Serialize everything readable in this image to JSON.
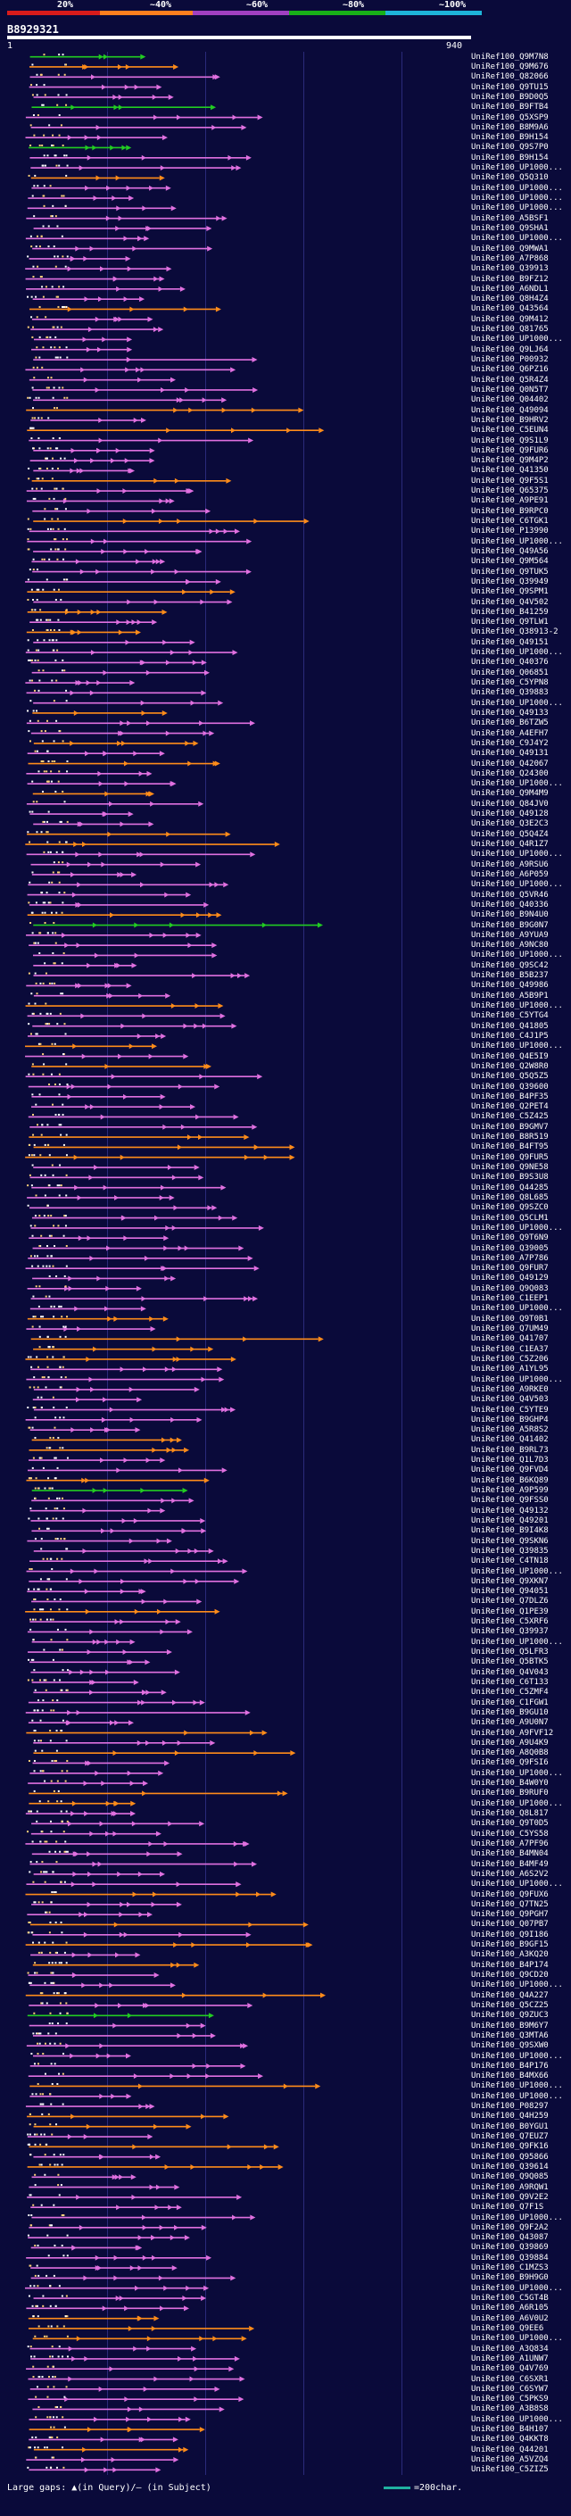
{
  "legend": {
    "pcts": [
      "20%",
      "~40%",
      "~60%",
      "~80%",
      "~100%"
    ],
    "colors": [
      "#d81b1b",
      "#ff7f1e",
      "#a040c0",
      "#18b018",
      "#1eb4d8"
    ]
  },
  "query": {
    "id": "B8929321",
    "start": "1",
    "end": "940"
  },
  "footer": {
    "gaps_text": "Large gaps: ▲(in Query)/– (in Subject)",
    "scale_text": "=200char."
  },
  "hits": [
    "UniRef100_Q9M7N8",
    "UniRef100_Q9M676",
    "UniRef100_Q82066",
    "UniRef100_Q9TU15",
    "UniRef100_B9D0Q5",
    "UniRef100_B9FTB4",
    "UniRef100_Q5XSP9",
    "UniRef100_B8M9A6",
    "UniRef100_B9H154",
    "UniRef100_Q9S7P0",
    "UniRef100_B9H154",
    "UniRef100_UP1000...",
    "UniRef100_Q5Q310",
    "UniRef100_UP1000...",
    "UniRef100_UP1000...",
    "UniRef100_UP1000...",
    "UniRef100_A5BSF1",
    "UniRef100_Q9SHA1",
    "UniRef100_UP1000...",
    "UniRef100_Q9MWA1",
    "UniRef100_A7P868",
    "UniRef100_Q39913",
    "UniRef100_B9FZ12",
    "UniRef100_A6NDL1",
    "UniRef100_Q8H4Z4",
    "UniRef100_Q43564",
    "UniRef100_Q9M412",
    "UniRef100_Q81765",
    "UniRef100_UP1000...",
    "UniRef100_Q9LJ64",
    "UniRef100_P00932",
    "UniRef100_Q6PZ16",
    "UniRef100_Q5R4Z4",
    "UniRef100_Q0N5T7",
    "UniRef100_Q04402",
    "UniRef100_Q49094",
    "UniRef100_B9HRV2",
    "UniRef100_C5EUN4",
    "UniRef100_Q9S1L9",
    "UniRef100_Q9FUR6",
    "UniRef100_Q9M4P2",
    "UniRef100_Q41350",
    "UniRef100_Q9F5S1",
    "UniRef100_Q65375",
    "UniRef100_A9PE91",
    "UniRef100_B9RPC0",
    "UniRef100_C6TGK1",
    "UniRef100_P13990",
    "UniRef100_UP1000...",
    "UniRef100_Q49A56",
    "UniRef100_Q9M564",
    "UniRef100_Q9TUK5",
    "UniRef100_Q39949",
    "UniRef100_Q9SPM1",
    "UniRef100_Q4V502",
    "UniRef100_B41259",
    "UniRef100_Q9TLW1",
    "UniRef100_Q38913-2",
    "UniRef100_Q49151",
    "UniRef100_UP1000...",
    "UniRef100_Q40376",
    "UniRef100_Q06851",
    "UniRef100_C5YPN8",
    "UniRef100_Q39883",
    "UniRef100_UP1000...",
    "UniRef100_Q49133",
    "UniRef100_B6TZW5",
    "UniRef100_A4EFH7",
    "UniRef100_C9J4Y2",
    "UniRef100_Q49131",
    "UniRef100_Q42067",
    "UniRef100_Q24300",
    "UniRef100_UP1000...",
    "UniRef100_Q9M4M9",
    "UniRef100_Q84JV0",
    "UniRef100_Q49128",
    "UniRef100_Q3E2C3",
    "UniRef100_Q5Q4Z4",
    "UniRef100_Q4R1Z7",
    "UniRef100_UP1000...",
    "UniRef100_A9RSU6",
    "UniRef100_A6P059",
    "UniRef100_UP1000...",
    "UniRef100_Q5VR46",
    "UniRef100_Q40336",
    "UniRef100_B9N4U0",
    "UniRef100_B9G0N7",
    "UniRef100_A9YUA9",
    "UniRef100_A9NC80",
    "UniRef100_UP1000...",
    "UniRef100_Q9SC42",
    "UniRef100_B5B237",
    "UniRef100_Q49986",
    "UniRef100_A5B9P1",
    "UniRef100_UP1000...",
    "UniRef100_C5YTG4",
    "UniRef100_Q41805",
    "UniRef100_C4J1P5",
    "UniRef100_UP1000...",
    "UniRef100_Q4E5I9",
    "UniRef100_Q2W8R0",
    "UniRef100_Q5Q5Z5",
    "UniRef100_Q39600",
    "UniRef100_B4PF35",
    "UniRef100_Q2PET4",
    "UniRef100_C5Z425",
    "UniRef100_B9GMV7",
    "UniRef100_B8R519",
    "UniRef100_B4FT95",
    "UniRef100_Q9FUR5",
    "UniRef100_Q9NE58",
    "UniRef100_B9S3U8",
    "UniRef100_Q44285",
    "UniRef100_Q8L685",
    "UniRef100_Q9SZC0",
    "UniRef100_Q5CLM1",
    "UniRef100_UP1000...",
    "UniRef100_Q9T6N9",
    "UniRef100_Q39005",
    "UniRef100_A7P786",
    "UniRef100_Q9FUR7",
    "UniRef100_Q49129",
    "UniRef100_Q9Q083",
    "UniRef100_C1EEP1",
    "UniRef100_UP1000...",
    "UniRef100_Q9T0B1",
    "UniRef100_Q7UM49",
    "UniRef100_Q41707",
    "UniRef100_C1EA37",
    "UniRef100_C5Z206",
    "UniRef100_A1YL95",
    "UniRef100_UP1000...",
    "UniRef100_A9RKE0",
    "UniRef100_Q4V503",
    "UniRef100_C5YTE9",
    "UniRef100_B9GHP4",
    "UniRef100_A5R8S2",
    "UniRef100_Q41402",
    "UniRef100_B9RL73",
    "UniRef100_Q1L7D3",
    "UniRef100_Q9FVD4",
    "UniRef100_B6KQ89",
    "UniRef100_A9P599",
    "UniRef100_Q9FSS0",
    "UniRef100_Q49132",
    "UniRef100_Q49201",
    "UniRef100_B9I4K8",
    "UniRef100_Q9SKN6",
    "UniRef100_Q39835",
    "UniRef100_C4TN18",
    "UniRef100_UP1000...",
    "UniRef100_Q9XKN7",
    "UniRef100_Q94051",
    "UniRef100_Q7DLZ6",
    "UniRef100_Q1PE39",
    "UniRef100_C5XRF6",
    "UniRef100_Q39937",
    "UniRef100_UP1000...",
    "UniRef100_Q5LFR3",
    "UniRef100_Q5BTK5",
    "UniRef100_Q4V043",
    "UniRef100_C6T133",
    "UniRef100_C5ZMF4",
    "UniRef100_C1FGW1",
    "UniRef100_B9GU10",
    "UniRef100_A9U0N7",
    "UniRef100_A9FVF12",
    "UniRef100_A9U4K9",
    "UniRef100_A8Q0B8",
    "UniRef100_Q9FSI6",
    "UniRef100_UP1000...",
    "UniRef100_B4W0Y0",
    "UniRef100_B9RUF0",
    "UniRef100_UP1000...",
    "UniRef100_Q8L817",
    "UniRef100_Q9T0D5",
    "UniRef100_C5YS58",
    "UniRef100_A7PF96",
    "UniRef100_B4MN04",
    "UniRef100_B4MF49",
    "UniRef100_A6S2V2",
    "UniRef100_UP1000...",
    "UniRef100_Q9FUX6",
    "UniRef100_Q7TN25",
    "UniRef100_Q9PGH7",
    "UniRef100_Q07PB7",
    "UniRef100_Q9I186",
    "UniRef100_B9GF15",
    "UniRef100_A3KQ20",
    "UniRef100_B4P174",
    "UniRef100_Q9CD20",
    "UniRef100_UP1000...",
    "UniRef100_Q4A227",
    "UniRef100_Q5CZ25",
    "UniRef100_Q9ZUC3",
    "UniRef100_B9M6Y7",
    "UniRef100_Q3MTA6",
    "UniRef100_Q9SXW0",
    "UniRef100_UP1000...",
    "UniRef100_B4P176",
    "UniRef100_B4MX66",
    "UniRef100_UP1000...",
    "UniRef100_UP1000...",
    "UniRef100_P08297",
    "UniRef100_Q4H259",
    "UniRef100_B0YGU1",
    "UniRef100_Q7EUZ7",
    "UniRef100_Q9FK16",
    "UniRef100_Q95866",
    "UniRef100_Q39614",
    "UniRef100_Q9Q085",
    "UniRef100_A9RQW1",
    "UniRef100_Q9V2E2",
    "UniRef100_Q7F1S",
    "UniRef100_UP1000...",
    "UniRef100_Q9F2A2",
    "UniRef100_Q43087",
    "UniRef100_Q39869",
    "UniRef100_Q39884",
    "UniRef100_C1MZS3",
    "UniRef100_B9H9G0",
    "UniRef100_UP1000...",
    "UniRef100_C5GT4B",
    "UniRef100_A6R105",
    "UniRef100_A6V0U2",
    "UniRef100_Q9EE6",
    "UniRef100_UP1000...",
    "UniRef100_A3Q834",
    "UniRef100_A1UNW7",
    "UniRef100_Q4V769",
    "UniRef100_C6SXR1",
    "UniRef100_C6SYW7",
    "UniRef100_C5PKS9",
    "UniRef100_A3B8S8",
    "UniRef100_UP1000...",
    "UniRef100_B4H107",
    "UniRef100_Q4KKT8",
    "UniRef100_Q44201",
    "UniRef100_A5VZQ4",
    "UniRef100_C5ZIZ5"
  ]
}
